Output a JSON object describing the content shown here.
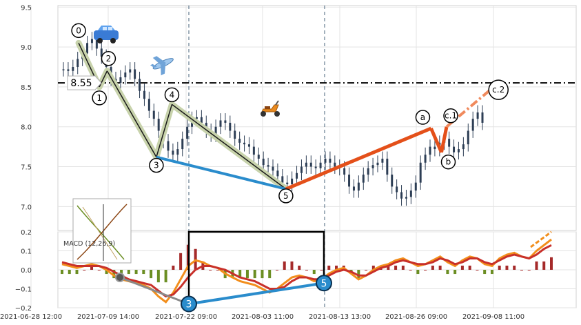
{
  "chart_data": {
    "type": "line",
    "title": "",
    "xlabel": "",
    "ylabel": "",
    "grid": true,
    "price_panel": {
      "ylim": [
        6.7,
        9.52
      ],
      "yticks": [
        "9.5",
        "9.0",
        "8.5",
        "8.0",
        "7.5",
        "7.0"
      ],
      "ytick_values": [
        9.5,
        9.0,
        8.5,
        8.0,
        7.5,
        7.0
      ],
      "level_value": 8.55,
      "level_label": "8.55",
      "close_series": [
        8.72,
        8.7,
        8.75,
        8.85,
        8.92,
        9.05,
        9.1,
        8.98,
        8.88,
        8.75,
        8.6,
        8.55,
        8.62,
        8.68,
        8.72,
        8.6,
        8.45,
        8.35,
        8.2,
        8.1,
        7.95,
        7.82,
        7.7,
        7.65,
        7.72,
        7.85,
        8.0,
        8.1,
        8.12,
        8.05,
        7.95,
        7.9,
        8.0,
        8.08,
        8.05,
        7.95,
        7.85,
        7.8,
        7.78,
        7.75,
        7.65,
        7.6,
        7.52,
        7.5,
        7.45,
        7.38,
        7.3,
        7.28,
        7.35,
        7.42,
        7.5,
        7.55,
        7.5,
        7.48,
        7.55,
        7.6,
        7.55,
        7.5,
        7.48,
        7.4,
        7.25,
        7.2,
        7.3,
        7.4,
        7.48,
        7.52,
        7.55,
        7.6,
        7.4,
        7.25,
        7.18,
        7.1,
        7.12,
        7.2,
        7.3,
        7.55,
        7.65,
        7.75,
        7.72,
        7.8,
        7.85,
        7.75,
        7.68,
        7.72,
        7.78,
        7.95,
        8.1,
        8.18,
        8.05
      ],
      "waves": [
        {
          "label": "0",
          "x": 0.04,
          "y": 9.05
        },
        {
          "label": "1",
          "x": 0.08,
          "y": 8.5
        },
        {
          "label": "2",
          "x": 0.095,
          "y": 8.7
        },
        {
          "label": "3",
          "x": 0.19,
          "y": 7.62
        },
        {
          "label": "4",
          "x": 0.22,
          "y": 8.28
        },
        {
          "label": "5",
          "x": 0.44,
          "y": 7.22
        },
        {
          "label": "a",
          "x": 0.72,
          "y": 7.98
        },
        {
          "label": "b",
          "x": 0.74,
          "y": 7.68
        },
        {
          "label": "c.1",
          "x": 0.75,
          "y": 8.0
        },
        {
          "label": "c.2",
          "x": 0.85,
          "y": 8.55
        }
      ]
    },
    "macd_panel": {
      "label": "MACD (12,26,9)",
      "ylim": [
        -0.2,
        0.2
      ],
      "yticks": [
        "0.2",
        "0.1",
        "0.0",
        "−0.1",
        "−0.2"
      ],
      "ytick_values": [
        0.2,
        0.1,
        0.0,
        -0.1,
        -0.2
      ],
      "marker_3_value": -0.18,
      "marker_5_value": -0.07,
      "marker_3_label": "3",
      "marker_5_label": "5",
      "macd": [
        0.03,
        0.02,
        0.01,
        0.02,
        0.03,
        0.02,
        0.0,
        -0.03,
        -0.05,
        -0.06,
        -0.07,
        -0.08,
        -0.1,
        -0.14,
        -0.17,
        -0.12,
        -0.05,
        0.02,
        0.05,
        0.04,
        0.02,
        0.01,
        -0.02,
        -0.04,
        -0.06,
        -0.07,
        -0.08,
        -0.1,
        -0.12,
        -0.1,
        -0.07,
        -0.04,
        -0.03,
        -0.04,
        -0.06,
        -0.05,
        -0.02,
        0.0,
        0.01,
        -0.02,
        -0.05,
        -0.03,
        0.0,
        0.02,
        0.03,
        0.05,
        0.06,
        0.04,
        0.02,
        0.03,
        0.05,
        0.07,
        0.04,
        0.02,
        0.05,
        0.07,
        0.06,
        0.03,
        0.02,
        0.06,
        0.08,
        0.09,
        0.07,
        0.06,
        0.1,
        0.13,
        0.16
      ],
      "signal": [
        0.04,
        0.03,
        0.02,
        0.02,
        0.02,
        0.02,
        0.01,
        -0.01,
        -0.03,
        -0.05,
        -0.06,
        -0.07,
        -0.08,
        -0.11,
        -0.14,
        -0.13,
        -0.09,
        -0.04,
        0.0,
        0.02,
        0.02,
        0.01,
        0.0,
        -0.02,
        -0.04,
        -0.05,
        -0.06,
        -0.08,
        -0.1,
        -0.1,
        -0.09,
        -0.06,
        -0.04,
        -0.04,
        -0.05,
        -0.05,
        -0.03,
        -0.01,
        0.0,
        -0.01,
        -0.03,
        -0.03,
        -0.01,
        0.01,
        0.02,
        0.04,
        0.05,
        0.04,
        0.03,
        0.03,
        0.04,
        0.06,
        0.05,
        0.03,
        0.04,
        0.06,
        0.06,
        0.04,
        0.03,
        0.05,
        0.07,
        0.08,
        0.07,
        0.06,
        0.08,
        0.11,
        0.13
      ]
    },
    "x_dates": [
      "2021-06-28 12:00",
      "2021-07-09 14:00",
      "2021-07-22 09:00",
      "2021-08-03 11:00",
      "2021-08-13 13:00",
      "2021-08-26 09:00",
      "2021-09-08 11:00"
    ],
    "vertical_markers": [
      "2021-07-22 09:00",
      "2021-08-13 13:00"
    ]
  },
  "colors": {
    "wave_fill": "#c8d3ac",
    "wave_line": "#1a1a1a",
    "correction_blue": "#2a8ccc",
    "correction_orange": "#e4501a",
    "level_line": "#000000",
    "candle": "#2d3e55",
    "macd_line": "#f28e1c",
    "signal_line": "#c8302a",
    "hist_pos": "#a52a2a",
    "hist_neg": "#6b8e23",
    "vmarker": "#44607a",
    "grid": "#e3e3e3"
  },
  "icons": [
    "car-icon",
    "airplane-icon",
    "scooter-icon",
    "macd-thumbnail-icon"
  ]
}
